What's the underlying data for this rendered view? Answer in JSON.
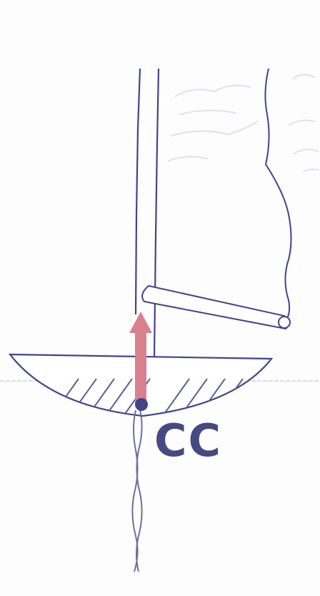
{
  "diagram": {
    "label": "CC",
    "colors": {
      "ink": "#3f4588",
      "label": "#454a80",
      "arrow": "#d9808e",
      "faint": "#d6d8ea",
      "hatch": "#5a5f93",
      "waterline": "#c9cde3"
    }
  }
}
